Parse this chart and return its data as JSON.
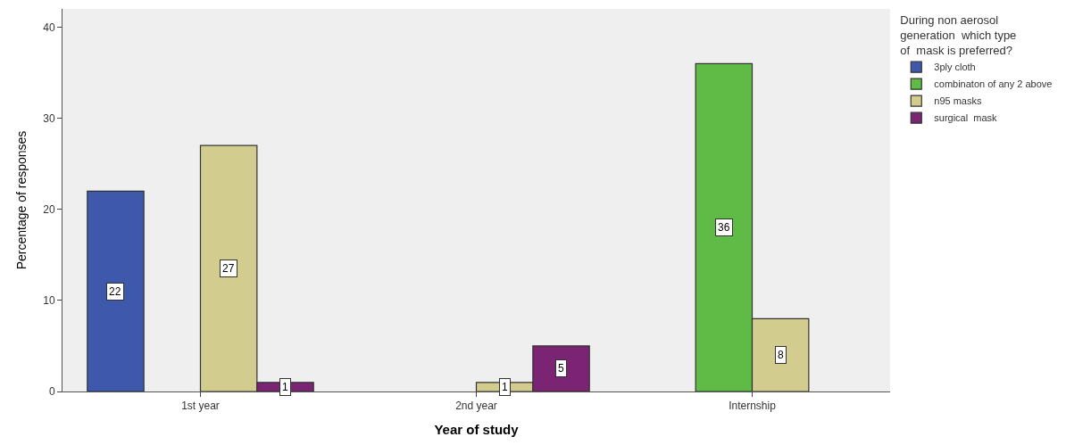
{
  "chart_data": {
    "type": "bar",
    "xlabel": "Year of study",
    "ylabel": "Percentage of responses",
    "legend_title": "During non aerosol\ngeneration  which type\nof  mask is preferred?",
    "categories": [
      "1st year",
      "2nd year",
      "Internship"
    ],
    "series": [
      {
        "name": "3ply cloth",
        "color": "#3e58ac",
        "values": [
          22,
          null,
          null
        ]
      },
      {
        "name": "combinaton of any 2 above",
        "color": "#5fba46",
        "values": [
          null,
          null,
          36
        ]
      },
      {
        "name": "n95 masks",
        "color": "#d2cc8f",
        "values": [
          27,
          1,
          8
        ]
      },
      {
        "name": "surgical  mask",
        "color": "#7b2473",
        "values": [
          1,
          5,
          null
        ]
      }
    ],
    "ylim": [
      0,
      42
    ],
    "yticks": [
      0,
      10,
      20,
      30,
      40
    ],
    "grid": false,
    "legend": "top right",
    "data_labels": true
  }
}
